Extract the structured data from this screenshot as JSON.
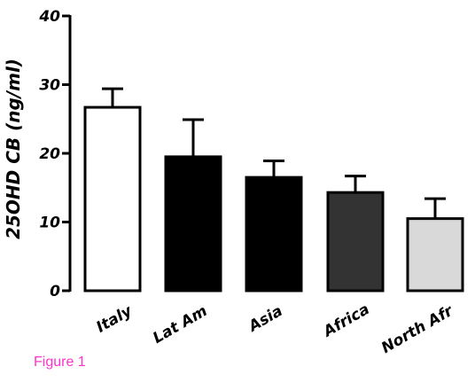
{
  "caption": "Figure 1",
  "chart_data": {
    "type": "bar",
    "title": "",
    "xlabel": "",
    "ylabel": "25OHD CB (ng/ml)",
    "ylim": [
      0,
      40
    ],
    "yticks": [
      "0",
      "10",
      "20",
      "30",
      "40"
    ],
    "categories": [
      "Italy",
      "Lat Am",
      "Asia",
      "Africa",
      "North Afr"
    ],
    "values": [
      26.7,
      19.5,
      16.5,
      14.3,
      10.5
    ],
    "error_upper": [
      2.7,
      5.4,
      2.4,
      2.4,
      2.9
    ],
    "bar_colors": [
      "#ffffff",
      "#000000",
      "#000000",
      "#333333",
      "#d9d9d9"
    ],
    "grid": false,
    "legend": "none"
  }
}
